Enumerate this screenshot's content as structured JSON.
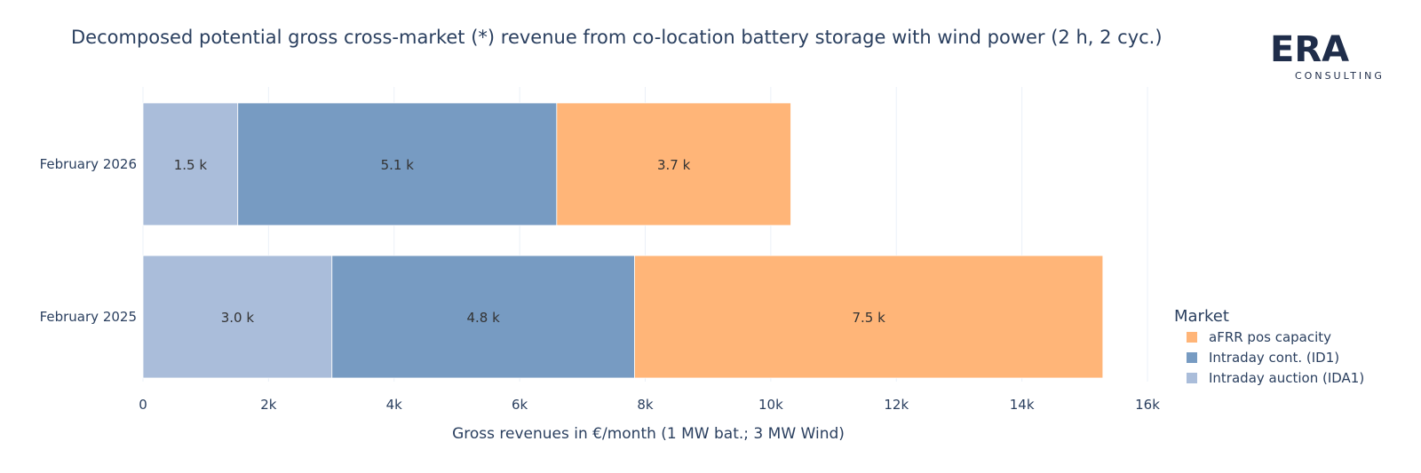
{
  "title": "Decomposed potential gross cross-market (*) revenue from co-location battery storage with wind power (2 h, 2 cyc.)",
  "logo": {
    "letters": "ERA",
    "subtitle": "CONSULTING"
  },
  "colors": {
    "ida1": "#aabdda",
    "id1": "#779bc2",
    "afrr": "#ffb578"
  },
  "chart_data": {
    "type": "bar",
    "orientation": "horizontal",
    "stacked": true,
    "categories": [
      "February 2026",
      "February 2025"
    ],
    "series": [
      {
        "name": "Intraday auction (IDA1)",
        "color_key": "ida1",
        "values": [
          1510,
          3010
        ],
        "labels": [
          "1.5 k",
          "3.0 k"
        ]
      },
      {
        "name": "Intraday cont. (ID1)",
        "color_key": "id1",
        "values": [
          5080,
          4820
        ],
        "labels": [
          "5.1 k",
          "4.8 k"
        ]
      },
      {
        "name": "aFRR pos capacity",
        "color_key": "afrr",
        "values": [
          3730,
          7460
        ],
        "labels": [
          "3.7 k",
          "7.5 k"
        ]
      }
    ],
    "xlabel": "Gross revenues in €/month (1 MW bat.; 3 MW Wind)",
    "ylabel": "",
    "xlim": [
      0,
      16000
    ],
    "xticks": [
      0,
      2000,
      4000,
      6000,
      8000,
      10000,
      12000,
      14000,
      16000
    ],
    "xtick_labels": [
      "0",
      "2k",
      "4k",
      "6k",
      "8k",
      "10k",
      "12k",
      "14k",
      "16k"
    ],
    "grid": true,
    "legend": {
      "title": "Market",
      "position": "right",
      "order": [
        "aFRR pos capacity",
        "Intraday cont. (ID1)",
        "Intraday auction (IDA1)"
      ]
    }
  }
}
